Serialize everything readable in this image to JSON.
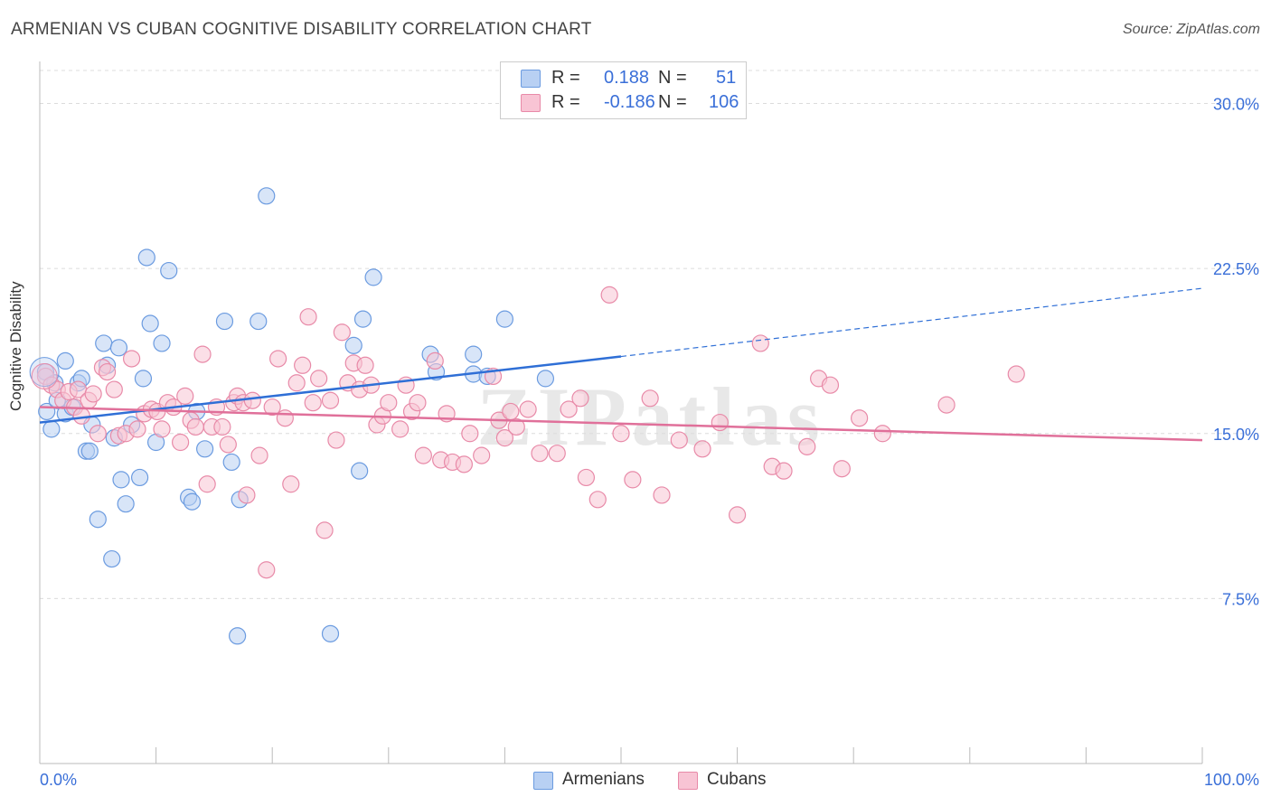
{
  "header": {
    "title": "ARMENIAN VS CUBAN COGNITIVE DISABILITY CORRELATION CHART",
    "source": "Source: ZipAtlas.com"
  },
  "watermark": "ZIPatlas",
  "legend_top": {
    "rows": [
      {
        "r_label": "R =",
        "r_value": "0.188",
        "n_label": "N =",
        "n_value": "51",
        "fill": "#b8d0f3",
        "stroke": "#6b9be0"
      },
      {
        "r_label": "R =",
        "r_value": "-0.186",
        "n_label": "N =",
        "n_value": "106",
        "fill": "#f8c4d4",
        "stroke": "#e88aa8"
      }
    ]
  },
  "legend_bottom": [
    {
      "label": "Armenians",
      "fill": "#b8d0f3",
      "stroke": "#6b9be0"
    },
    {
      "label": "Cubans",
      "fill": "#f8c4d4",
      "stroke": "#e88aa8"
    }
  ],
  "chart_data": {
    "type": "scatter",
    "title": "ARMENIAN VS CUBAN COGNITIVE DISABILITY CORRELATION CHART",
    "xlabel": "",
    "ylabel": "Cognitive Disability",
    "xlim": [
      0,
      100
    ],
    "ylim": [
      0,
      31.5
    ],
    "x_tick_labels": [
      "0.0%",
      "100.0%"
    ],
    "y_ticks": [
      7.5,
      15.0,
      22.5,
      30.0
    ],
    "y_tick_labels": [
      "7.5%",
      "15.0%",
      "22.5%",
      "30.0%"
    ],
    "grid": "horizontal dashed",
    "legend_placement": "top-center and bottom-center",
    "series": [
      {
        "name": "Armenians",
        "color": "#6b9be0",
        "fill": "#b8d0f3",
        "trend": {
          "x0": 0,
          "y0": 15.5,
          "x1": 50,
          "y1": 18.5,
          "dashed_to_x": 100,
          "dashed_to_y": 21.6,
          "color": "#2f6fd6"
        },
        "points": [
          [
            0.5,
            17.8
          ],
          [
            0.6,
            16.0
          ],
          [
            1.0,
            15.2
          ],
          [
            1.5,
            16.5
          ],
          [
            2.2,
            15.9
          ],
          [
            2.2,
            18.3
          ],
          [
            2.8,
            16.2
          ],
          [
            3.3,
            17.3
          ],
          [
            3.6,
            17.5
          ],
          [
            4.0,
            14.2
          ],
          [
            4.3,
            14.2
          ],
          [
            4.5,
            15.4
          ],
          [
            5.0,
            11.1
          ],
          [
            5.5,
            19.1
          ],
          [
            5.8,
            18.1
          ],
          [
            6.2,
            9.3
          ],
          [
            6.4,
            14.8
          ],
          [
            6.8,
            18.9
          ],
          [
            7.0,
            12.9
          ],
          [
            7.4,
            11.8
          ],
          [
            7.9,
            15.4
          ],
          [
            8.6,
            13.0
          ],
          [
            8.9,
            17.5
          ],
          [
            9.2,
            23.0
          ],
          [
            9.5,
            20.0
          ],
          [
            10.0,
            14.6
          ],
          [
            10.5,
            19.1
          ],
          [
            11.1,
            22.4
          ],
          [
            12.8,
            12.1
          ],
          [
            13.1,
            11.9
          ],
          [
            13.5,
            16.0
          ],
          [
            14.2,
            14.3
          ],
          [
            15.9,
            20.1
          ],
          [
            16.5,
            13.7
          ],
          [
            17.0,
            5.8
          ],
          [
            17.2,
            12.0
          ],
          [
            18.8,
            20.1
          ],
          [
            19.5,
            25.8
          ],
          [
            25.0,
            5.9
          ],
          [
            27.0,
            19.0
          ],
          [
            27.5,
            13.3
          ],
          [
            27.8,
            20.2
          ],
          [
            28.7,
            22.1
          ],
          [
            33.6,
            18.6
          ],
          [
            34.1,
            17.8
          ],
          [
            37.3,
            18.6
          ],
          [
            37.3,
            17.7
          ],
          [
            38.5,
            17.6
          ],
          [
            40.0,
            20.2
          ],
          [
            43.5,
            17.5
          ],
          [
            1.3,
            17.3
          ]
        ]
      },
      {
        "name": "Cubans",
        "color": "#e88aa8",
        "fill": "#f8c4d4",
        "trend": {
          "x0": 0,
          "y0": 16.2,
          "x1": 100,
          "y1": 14.7,
          "color": "#e0709a"
        },
        "points": [
          [
            0.5,
            17.6
          ],
          [
            1.0,
            17.2
          ],
          [
            1.5,
            17.0
          ],
          [
            2.0,
            16.5
          ],
          [
            2.5,
            16.9
          ],
          [
            3.0,
            16.2
          ],
          [
            3.3,
            17.0
          ],
          [
            3.6,
            15.8
          ],
          [
            4.2,
            16.5
          ],
          [
            4.6,
            16.8
          ],
          [
            5.0,
            15.0
          ],
          [
            5.4,
            18.0
          ],
          [
            5.8,
            17.8
          ],
          [
            6.4,
            17.0
          ],
          [
            6.8,
            14.9
          ],
          [
            7.4,
            15.0
          ],
          [
            7.9,
            18.4
          ],
          [
            8.4,
            15.2
          ],
          [
            9.0,
            15.9
          ],
          [
            9.6,
            16.1
          ],
          [
            10.1,
            16.0
          ],
          [
            10.5,
            15.2
          ],
          [
            11.0,
            16.4
          ],
          [
            11.5,
            16.2
          ],
          [
            12.1,
            14.6
          ],
          [
            12.5,
            16.7
          ],
          [
            13.0,
            15.6
          ],
          [
            13.4,
            15.3
          ],
          [
            14.0,
            18.6
          ],
          [
            14.4,
            12.7
          ],
          [
            14.8,
            15.3
          ],
          [
            15.2,
            16.2
          ],
          [
            15.7,
            15.3
          ],
          [
            16.2,
            14.5
          ],
          [
            16.7,
            16.4
          ],
          [
            17.0,
            16.7
          ],
          [
            17.5,
            16.4
          ],
          [
            17.8,
            12.2
          ],
          [
            18.3,
            16.5
          ],
          [
            18.9,
            14.0
          ],
          [
            19.5,
            8.8
          ],
          [
            20.0,
            16.2
          ],
          [
            20.5,
            18.4
          ],
          [
            21.1,
            15.7
          ],
          [
            21.6,
            12.7
          ],
          [
            22.1,
            17.3
          ],
          [
            22.6,
            18.1
          ],
          [
            23.1,
            20.3
          ],
          [
            23.5,
            16.4
          ],
          [
            24.0,
            17.5
          ],
          [
            24.5,
            10.6
          ],
          [
            25.0,
            16.5
          ],
          [
            25.5,
            14.7
          ],
          [
            26.0,
            19.6
          ],
          [
            26.5,
            17.3
          ],
          [
            27.0,
            18.2
          ],
          [
            27.5,
            17.0
          ],
          [
            28.0,
            18.1
          ],
          [
            28.5,
            17.2
          ],
          [
            29.0,
            15.4
          ],
          [
            29.5,
            15.8
          ],
          [
            30.0,
            16.4
          ],
          [
            31.0,
            15.2
          ],
          [
            31.5,
            17.2
          ],
          [
            32.0,
            16.0
          ],
          [
            32.5,
            16.4
          ],
          [
            33.0,
            14.0
          ],
          [
            34.0,
            18.3
          ],
          [
            34.5,
            13.8
          ],
          [
            35.0,
            15.9
          ],
          [
            35.5,
            13.7
          ],
          [
            36.5,
            13.6
          ],
          [
            37.0,
            15.0
          ],
          [
            38.0,
            14.0
          ],
          [
            39.0,
            17.6
          ],
          [
            39.5,
            15.6
          ],
          [
            40.0,
            14.8
          ],
          [
            40.5,
            16.0
          ],
          [
            41.0,
            15.3
          ],
          [
            42.0,
            16.1
          ],
          [
            43.0,
            14.1
          ],
          [
            44.5,
            14.1
          ],
          [
            45.5,
            16.1
          ],
          [
            46.5,
            16.6
          ],
          [
            47.0,
            13.0
          ],
          [
            48.0,
            12.0
          ],
          [
            49.0,
            21.3
          ],
          [
            50.0,
            15.0
          ],
          [
            51.0,
            12.9
          ],
          [
            52.5,
            16.6
          ],
          [
            53.5,
            12.2
          ],
          [
            55.0,
            14.7
          ],
          [
            57.0,
            14.3
          ],
          [
            58.5,
            15.5
          ],
          [
            60.0,
            11.3
          ],
          [
            62.0,
            19.1
          ],
          [
            63.0,
            13.5
          ],
          [
            64.0,
            13.3
          ],
          [
            66.0,
            14.4
          ],
          [
            67.0,
            17.5
          ],
          [
            68.0,
            17.2
          ],
          [
            69.0,
            13.4
          ],
          [
            70.5,
            15.7
          ],
          [
            72.5,
            15.0
          ],
          [
            78.0,
            16.3
          ],
          [
            84.0,
            17.7
          ]
        ]
      }
    ]
  }
}
